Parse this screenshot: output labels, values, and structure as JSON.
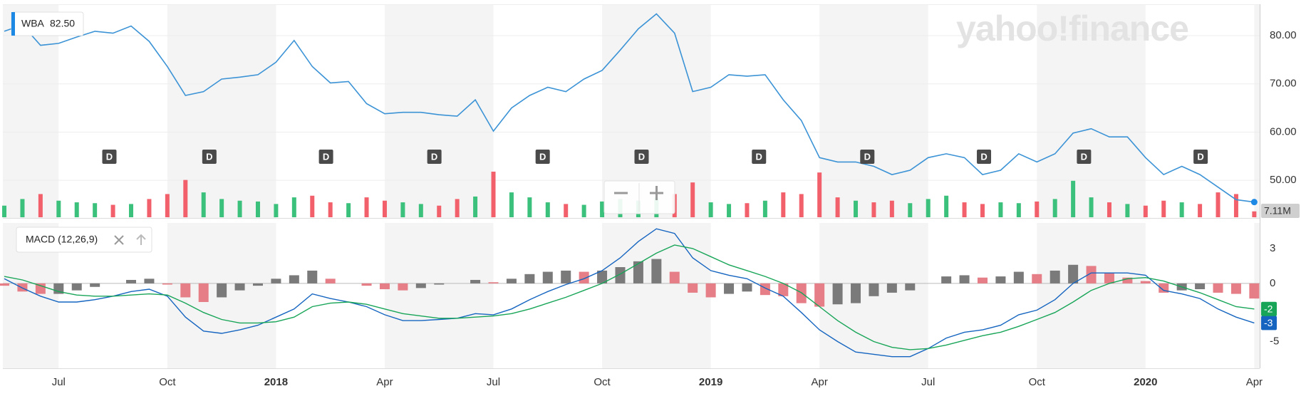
{
  "chart_data": [
    {
      "type": "line",
      "legend_value": "82.50",
      "watermark": "yahoo!finance",
      "x": [
        -1.5,
        -1,
        -0.5,
        0,
        0.5,
        1,
        1.5,
        2,
        2.5,
        3,
        3.5,
        4,
        4.5,
        5,
        5.5,
        6,
        6.5,
        7,
        7.5,
        8,
        8.5,
        9,
        9.5,
        10,
        10.5,
        11,
        11.5,
        12,
        12.5,
        13,
        13.5,
        14,
        14.5,
        15,
        15.5,
        16,
        16.5,
        17,
        17.5,
        18,
        18.5,
        19,
        19.5,
        20,
        20.5,
        21,
        21.5,
        22,
        22.5,
        23,
        23.5,
        24,
        24.5,
        25,
        25.5,
        26,
        26.5,
        27,
        27.5,
        28,
        28.5,
        29,
        29.5,
        30,
        30.5,
        31,
        31.5,
        32,
        32.5,
        33
      ],
      "xlim": [
        -1.54,
        33.15
      ],
      "series": [
        {
          "name": "WBA",
          "color": "#3b93d6",
          "values": [
            80.9,
            82.2,
            78,
            78.4,
            79.7,
            80.9,
            80.5,
            82,
            78.8,
            73.6,
            67.6,
            68.4,
            71,
            71.4,
            71.9,
            74.5,
            79,
            73.6,
            70.2,
            70.5,
            65.9,
            63.8,
            64.1,
            64.1,
            63.6,
            63.3,
            66.7,
            60.2,
            65,
            67.6,
            69.3,
            68.4,
            71,
            72.8,
            77,
            81.4,
            84.5,
            80.5,
            68.4,
            69.3,
            71.9,
            71.6,
            71.9,
            66.7,
            62.4,
            54.7,
            53.8,
            53.8,
            52.9,
            51.2,
            52.1,
            54.7,
            55.5,
            54.7,
            51.2,
            52.1,
            55.5,
            53.8,
            55.5,
            59.8,
            60.7,
            59,
            59,
            54.7,
            51.2,
            52.9,
            51.2,
            48.6,
            46,
            45.5
          ]
        }
      ],
      "volume": {
        "color_up": "#3cc17c",
        "color_down": "#f2616b",
        "last_label": "7.11M",
        "values": [
          14,
          22,
          28,
          20,
          18,
          17,
          15,
          16,
          22,
          28,
          45,
          30,
          22,
          20,
          19,
          16,
          24,
          26,
          18,
          17,
          24,
          20,
          18,
          16,
          14,
          22,
          25,
          55,
          30,
          24,
          18,
          16,
          15,
          19,
          22,
          20,
          24,
          28,
          42,
          18,
          16,
          17,
          20,
          30,
          28,
          54,
          24,
          20,
          18,
          20,
          17,
          22,
          26,
          18,
          16,
          18,
          17,
          19,
          22,
          44,
          24,
          18,
          16,
          14,
          20,
          18,
          16,
          30,
          28,
          7.11
        ]
      },
      "dividends": {
        "label": "D",
        "x": [
          1.4,
          4.16,
          7.38,
          10.37,
          13.36,
          16.09,
          19.33,
          22.32,
          25.54,
          28.3,
          31.52
        ]
      },
      "ylim": [
        42.2,
        86.5
      ],
      "yticks": [
        {
          "value": 50,
          "label": "50.00"
        },
        {
          "value": 60,
          "label": "60.00"
        },
        {
          "value": 70,
          "label": "70.00"
        },
        {
          "value": 80,
          "label": "80.00"
        }
      ],
      "grid": true
    },
    {
      "type": "macd",
      "title": "MACD (12,26,9)",
      "x": [
        -1.5,
        -1,
        -0.5,
        0,
        0.5,
        1,
        1.5,
        2,
        2.5,
        3,
        3.5,
        4,
        4.5,
        5,
        5.5,
        6,
        6.5,
        7,
        7.5,
        8,
        8.5,
        9,
        9.5,
        10,
        10.5,
        11,
        11.5,
        12,
        12.5,
        13,
        13.5,
        14,
        14.5,
        15,
        15.5,
        16,
        16.5,
        17,
        17.5,
        18,
        18.5,
        19,
        19.5,
        20,
        20.5,
        21,
        21.5,
        22,
        22.5,
        23,
        23.5,
        24,
        24.5,
        25,
        25.5,
        26,
        26.5,
        27,
        27.5,
        28,
        28.5,
        29,
        29.5,
        30,
        30.5,
        31,
        31.5,
        32,
        32.5,
        33
      ],
      "xlim": [
        -1.54,
        33.15
      ],
      "xticks": [
        {
          "value": 0,
          "label": "Jul"
        },
        {
          "value": 3,
          "label": "Oct"
        },
        {
          "value": 6,
          "label": "2018"
        },
        {
          "value": 9,
          "label": "Apr"
        },
        {
          "value": 12,
          "label": "Jul"
        },
        {
          "value": 15,
          "label": "Oct"
        },
        {
          "value": 18,
          "label": "2019"
        },
        {
          "value": 21,
          "label": "Apr"
        },
        {
          "value": 24,
          "label": "Jul"
        },
        {
          "value": 27,
          "label": "Oct"
        },
        {
          "value": 30,
          "label": "2020"
        },
        {
          "value": 33,
          "label": "Apr"
        }
      ],
      "series": [
        {
          "color": "#1565c0",
          "last_label": "-3",
          "values": [
            0.4,
            -0.4,
            -1.1,
            -1.6,
            -1.6,
            -1.4,
            -1.1,
            -0.7,
            -0.5,
            -1.1,
            -2.9,
            -4.1,
            -4.3,
            -4,
            -3.6,
            -2.9,
            -2.2,
            -0.9,
            -1.3,
            -1.6,
            -2,
            -2.7,
            -3.2,
            -3.2,
            -3.1,
            -3,
            -2.6,
            -2.7,
            -2.2,
            -1.4,
            -0.7,
            -0.1,
            0.4,
            1.1,
            2.2,
            3.6,
            4.7,
            4.3,
            2.2,
            1.1,
            0.7,
            0.4,
            -0.4,
            -1.1,
            -2.5,
            -4,
            -5,
            -5.9,
            -6.1,
            -6.3,
            -6.3,
            -5.6,
            -4.7,
            -4.2,
            -4,
            -3.6,
            -2.7,
            -2.3,
            -1.4,
            0,
            0.9,
            0.9,
            0.9,
            0.7,
            -0.6,
            -0.9,
            -1.3,
            -2.2,
            -2.9,
            -3.4
          ]
        },
        {
          "color": "#18a558",
          "last_label": "-2",
          "values": [
            0.6,
            0.3,
            -0.2,
            -0.7,
            -1,
            -1.1,
            -1.1,
            -1,
            -0.9,
            -1,
            -1.7,
            -2.5,
            -3.1,
            -3.4,
            -3.4,
            -3.3,
            -2.9,
            -2,
            -1.7,
            -1.6,
            -1.8,
            -2.2,
            -2.6,
            -2.8,
            -3,
            -3,
            -2.9,
            -2.8,
            -2.6,
            -2.2,
            -1.7,
            -1.2,
            -0.6,
            0,
            0.8,
            1.7,
            2.6,
            3.3,
            3,
            2.3,
            1.6,
            1.1,
            0.6,
            0,
            -0.8,
            -2,
            -3.2,
            -4.2,
            -5,
            -5.5,
            -5.7,
            -5.6,
            -5.3,
            -4.9,
            -4.5,
            -4.2,
            -3.7,
            -3.1,
            -2.5,
            -1.6,
            -0.6,
            0,
            0.4,
            0.5,
            0.2,
            -0.3,
            -0.8,
            -1.4,
            -2,
            -2.2
          ]
        }
      ],
      "histogram": {
        "color_up": "#7a7a7a",
        "color_down": "#e57e86",
        "values": [
          -0.2,
          -0.7,
          -0.9,
          -0.9,
          -0.6,
          -0.3,
          0,
          0.3,
          0.4,
          -0.1,
          -1.2,
          -1.6,
          -1.2,
          -0.6,
          -0.2,
          0.4,
          0.7,
          1.1,
          0.4,
          0,
          -0.2,
          -0.5,
          -0.6,
          -0.4,
          -0.1,
          0,
          0.3,
          0.1,
          0.4,
          0.8,
          1,
          1.1,
          1,
          1.1,
          1.4,
          1.9,
          2.1,
          1,
          -0.8,
          -1.2,
          -0.9,
          -0.7,
          -1,
          -1.1,
          -1.7,
          -2,
          -1.8,
          -1.7,
          -1.1,
          -0.8,
          -0.6,
          0,
          0.6,
          0.7,
          0.5,
          0.6,
          1,
          0.8,
          1.1,
          1.6,
          1.5,
          0.9,
          0.5,
          0.2,
          -0.8,
          -0.6,
          -0.5,
          -0.8,
          -0.9,
          -1.3
        ]
      },
      "ylim": [
        -7.3,
        5.2
      ],
      "yticks": [
        -5,
        0,
        3
      ]
    }
  ]
}
